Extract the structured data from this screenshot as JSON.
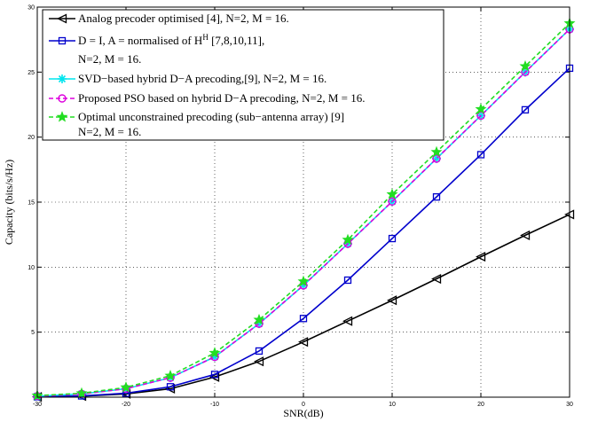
{
  "chart_data": {
    "type": "line",
    "xlabel": "SNR(dB)",
    "ylabel": "Capacity (bits/s/Hz)",
    "xlim": [
      -30,
      30
    ],
    "ylim": [
      0,
      30
    ],
    "xticks": [
      -30,
      -20,
      -10,
      0,
      10,
      20,
      30
    ],
    "yticks": [
      5,
      10,
      15,
      20,
      25,
      30
    ],
    "grid": "dotted",
    "legend_position": "top-left",
    "x": [
      -30,
      -25,
      -20,
      -15,
      -10,
      -5,
      0,
      5,
      10,
      15,
      20,
      25,
      30
    ],
    "series": [
      {
        "name": "Analog precoder optimised  [4], N=2, M = 16.",
        "legend_lines": [
          "Analog precoder optimised  [4], N=2, M = 16."
        ],
        "color": "#000000",
        "marker": "triangle-left",
        "dash": "solid",
        "values": [
          0.02,
          0.08,
          0.25,
          0.65,
          1.55,
          2.75,
          4.25,
          5.85,
          7.45,
          9.1,
          10.8,
          12.45,
          14.05
        ]
      },
      {
        "name": "D = I, A = normalised of H^H [7,8,10,11], N=2, M = 16.",
        "legend_lines": [
          "D = I, A = normalised of H",
          "H",
          " [7,8,10,11],",
          "N=2, M = 16."
        ],
        "color": "#0000cc",
        "marker": "square",
        "dash": "solid",
        "values": [
          0.03,
          0.1,
          0.3,
          0.8,
          1.75,
          3.55,
          6.05,
          9.0,
          12.2,
          15.4,
          18.65,
          22.1,
          25.3
        ]
      },
      {
        "name": "SVD−based hybrid D−A precoding,[9], N=2, M = 16.",
        "legend_lines": [
          "SVD−based hybrid D−A precoding,[9], N=2, M = 16."
        ],
        "color": "#00e5ee",
        "marker": "asterisk",
        "dash": "solid",
        "values": [
          0.08,
          0.25,
          0.65,
          1.5,
          3.1,
          5.65,
          8.6,
          11.8,
          15.05,
          18.35,
          21.65,
          25.0,
          28.3
        ]
      },
      {
        "name": "Proposed PSO based on hybrid D−A precoding, N=2, M = 16.",
        "legend_lines": [
          "Proposed PSO based on hybrid D−A precoding, N=2, M = 16."
        ],
        "color": "#dd00dd",
        "marker": "circle",
        "dash": "dashed",
        "values": [
          0.08,
          0.25,
          0.65,
          1.5,
          3.1,
          5.65,
          8.6,
          11.8,
          15.05,
          18.35,
          21.65,
          25.0,
          28.3
        ]
      },
      {
        "name": "Optimal unconstrained precoding (sub−antenna array) [9] N=2, M = 16.",
        "legend_lines": [
          "Optimal unconstrained precoding (sub−antenna array) [9]",
          "N=2, M = 16."
        ],
        "color": "#22dd22",
        "marker": "star",
        "dash": "dashed",
        "values": [
          0.12,
          0.3,
          0.75,
          1.65,
          3.4,
          5.95,
          8.9,
          12.1,
          15.6,
          18.85,
          22.15,
          25.45,
          28.75
        ]
      }
    ]
  }
}
